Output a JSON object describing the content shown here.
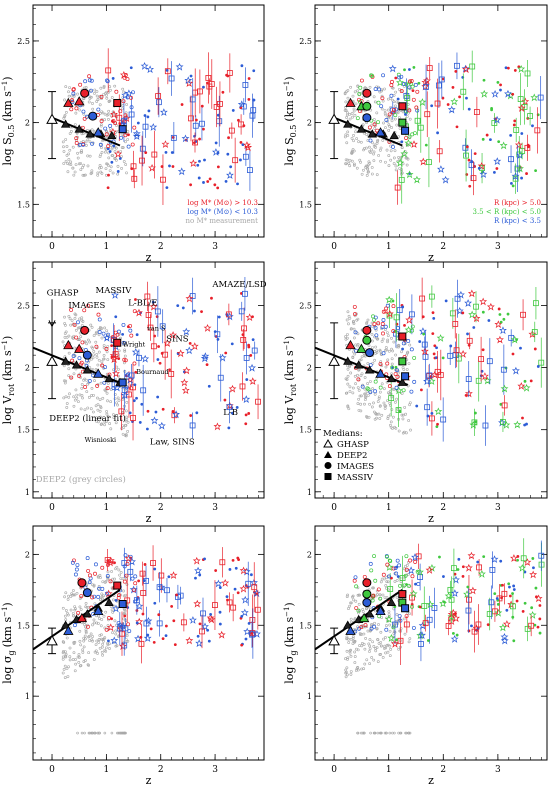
{
  "colors": {
    "red": "#e8202a",
    "blue": "#2c5cd6",
    "green": "#3fc83f",
    "grey": "#a8a8a8",
    "black": "#000000",
    "purple": "#8a3aa8"
  },
  "chart_data": [
    {
      "id": "p1",
      "type": "scatter",
      "ylabel_main": "log S",
      "ylabel_sub": "0.5",
      "ylabel_unit": "(km s",
      "ylabel_sup": "−1",
      "ylabel_end": ")",
      "xlabel": "z",
      "xlim": [
        -0.35,
        3.9
      ],
      "ylim": [
        1.3,
        2.72
      ],
      "xticks": [
        "0",
        "1",
        "2",
        "3"
      ],
      "yticks": [
        "1.5",
        "2",
        "2.5"
      ],
      "legend": [
        {
          "text": "log M* (M⊙) > 10.3",
          "color": "red"
        },
        {
          "text": "log M* (M⊙) < 10.3",
          "color": "blue"
        },
        {
          "text": "no M* measurement",
          "color": "grey"
        }
      ],
      "fit": {
        "x": [
          0,
          1.25
        ],
        "y": [
          2.03,
          1.86
        ]
      },
      "ghasp": {
        "x": 0.0,
        "y": 2.02,
        "ylow": 1.78,
        "yhigh": 2.19
      },
      "medians_deep2": {
        "x": [
          0.25,
          0.5,
          0.7,
          0.9,
          1.1
        ],
        "y": [
          1.99,
          1.96,
          1.93,
          1.93,
          1.92
        ]
      },
      "medians_images": [
        {
          "x": 0.6,
          "y": 2.18,
          "color": "red"
        },
        {
          "x": 0.75,
          "y": 2.04,
          "color": "blue"
        }
      ],
      "medians_massiv": [
        {
          "x": 1.2,
          "y": 2.12,
          "color": "red"
        },
        {
          "x": 1.3,
          "y": 1.96,
          "color": "blue"
        }
      ],
      "triangle_colored": [
        {
          "x": 0.3,
          "y": 2.12,
          "color": "red"
        },
        {
          "x": 0.5,
          "y": 2.13,
          "color": "red"
        },
        {
          "x": 0.85,
          "y": 1.94,
          "color": "blue"
        }
      ]
    },
    {
      "id": "p2",
      "type": "scatter",
      "ylabel_main": "log S",
      "ylabel_sub": "0.5",
      "ylabel_unit": "(km s",
      "ylabel_sup": "−1",
      "ylabel_end": ")",
      "xlabel": "z",
      "xlim": [
        -0.35,
        3.9
      ],
      "ylim": [
        1.3,
        2.72
      ],
      "xticks": [
        "0",
        "1",
        "2",
        "3"
      ],
      "yticks": [
        "1.5",
        "2",
        "2.5"
      ],
      "legend": [
        {
          "text": "R (kpc) > 5.0",
          "color": "red"
        },
        {
          "text": "3.5 < R (kpc) < 5.0",
          "color": "green"
        },
        {
          "text": "R (kpc) < 3.5",
          "color": "blue"
        }
      ],
      "fit": {
        "x": [
          0,
          1.25
        ],
        "y": [
          2.03,
          1.86
        ]
      },
      "ghasp": {
        "x": 0.0,
        "y": 2.02,
        "ylow": 1.78,
        "yhigh": 2.19
      },
      "medians_deep2": {
        "x": [
          0.25,
          0.5,
          0.7,
          0.9,
          1.1
        ],
        "y": [
          1.99,
          1.96,
          1.93,
          1.93,
          1.92
        ]
      },
      "medians_images": [
        {
          "x": 0.6,
          "y": 2.18,
          "color": "red"
        },
        {
          "x": 0.6,
          "y": 2.1,
          "color": "green"
        },
        {
          "x": 0.6,
          "y": 2.03,
          "color": "blue"
        }
      ],
      "medians_massiv": [
        {
          "x": 1.25,
          "y": 2.1,
          "color": "red"
        },
        {
          "x": 1.25,
          "y": 2.0,
          "color": "green"
        },
        {
          "x": 1.3,
          "y": 1.95,
          "color": "blue"
        }
      ],
      "triangle_colored": [
        {
          "x": 0.3,
          "y": 2.12,
          "color": "red"
        },
        {
          "x": 0.5,
          "y": 2.1,
          "color": "green"
        },
        {
          "x": 0.85,
          "y": 1.94,
          "color": "blue"
        }
      ]
    },
    {
      "id": "p3",
      "type": "scatter",
      "ylabel_main": "log V",
      "ylabel_sub": "rot",
      "ylabel_unit": "(km s",
      "ylabel_sup": "−1",
      "ylabel_end": ")",
      "xlabel": "z",
      "xlim": [
        -0.35,
        3.9
      ],
      "ylim": [
        0.95,
        2.85
      ],
      "xticks": [
        "0",
        "1",
        "2",
        "3"
      ],
      "yticks": [
        "1",
        "1.5",
        "2",
        "2.5"
      ],
      "annotations": [
        {
          "text": "GHASP",
          "x": -0.1,
          "y": 2.58
        },
        {
          "text": "IMAGES",
          "x": 0.3,
          "y": 2.48
        },
        {
          "text": "MASSIV",
          "x": 0.8,
          "y": 2.6
        },
        {
          "text": "L-BL/E",
          "x": 1.4,
          "y": 2.5
        },
        {
          "text": "AMAZE/LSD",
          "x": 2.95,
          "y": 2.65
        },
        {
          "text": "van S",
          "x": 1.75,
          "y": 2.3
        },
        {
          "text": "Wright",
          "x": 1.3,
          "y": 2.17
        },
        {
          "text": "SINS",
          "x": 2.1,
          "y": 2.21
        },
        {
          "text": "Bournaud",
          "x": 1.55,
          "y": 1.95
        },
        {
          "text": "DEEP2 (linear fit)",
          "x": -0.05,
          "y": 1.57
        },
        {
          "text": "Wisnioski",
          "x": 0.6,
          "y": 1.4
        },
        {
          "text": "Law, SINS",
          "x": 1.8,
          "y": 1.38
        },
        {
          "text": "L-B",
          "x": 3.15,
          "y": 1.62
        },
        {
          "text": "DEEP2 (grey circles)",
          "x": -0.3,
          "y": 1.08
        }
      ],
      "fit": {
        "x": [
          -0.35,
          1.35
        ],
        "y": [
          2.16,
          1.86
        ]
      },
      "ghasp": {
        "x": 0.0,
        "y": 2.05,
        "ylow": 1.75,
        "yhigh": 2.36
      },
      "medians_deep2": {
        "x": [
          0.25,
          0.45,
          0.65,
          0.85,
          1.05,
          1.25
        ],
        "y": [
          2.05,
          2.02,
          1.98,
          1.95,
          1.91,
          1.88
        ]
      },
      "medians_images": [
        {
          "x": 0.6,
          "y": 2.3,
          "color": "red"
        },
        {
          "x": 0.65,
          "y": 2.1,
          "color": "blue"
        }
      ],
      "medians_massiv": [
        {
          "x": 1.2,
          "y": 2.2,
          "color": "red"
        },
        {
          "x": 1.3,
          "y": 1.88,
          "color": "blue"
        }
      ],
      "triangle_colored": [
        {
          "x": 0.3,
          "y": 2.18,
          "color": "red"
        },
        {
          "x": 0.5,
          "y": 2.15,
          "color": "red"
        },
        {
          "x": 0.85,
          "y": 1.95,
          "color": "blue"
        }
      ]
    },
    {
      "id": "p4",
      "type": "scatter",
      "ylabel_main": "log V",
      "ylabel_sub": "rot",
      "ylabel_unit": "(km s",
      "ylabel_sup": "−1",
      "ylabel_end": ")",
      "xlabel": "z",
      "xlim": [
        -0.35,
        3.9
      ],
      "ylim": [
        0.95,
        2.85
      ],
      "xticks": [
        "0",
        "1",
        "2",
        "3"
      ],
      "yticks": [
        "1",
        "1.5",
        "2",
        "2.5"
      ],
      "legend_title": "Medians:",
      "legend_markers": [
        {
          "text": "GHASP",
          "marker": "open-triangle"
        },
        {
          "text": "DEEP2",
          "marker": "filled-triangle"
        },
        {
          "text": "IMAGES",
          "marker": "filled-circle"
        },
        {
          "text": "MASSIV",
          "marker": "filled-square"
        }
      ],
      "fit": {
        "x": [
          -0.35,
          1.35
        ],
        "y": [
          2.16,
          1.86
        ]
      },
      "ghasp": {
        "x": 0.0,
        "y": 2.05,
        "ylow": 1.75,
        "yhigh": 2.36
      },
      "medians_deep2": {
        "x": [
          0.25,
          0.45,
          0.65,
          0.85,
          1.05,
          1.25
        ],
        "y": [
          2.05,
          2.02,
          1.98,
          1.95,
          1.91,
          1.88
        ]
      },
      "medians_images": [
        {
          "x": 0.6,
          "y": 2.3,
          "color": "red"
        },
        {
          "x": 0.6,
          "y": 2.22,
          "color": "green"
        },
        {
          "x": 0.65,
          "y": 2.12,
          "color": "blue"
        }
      ],
      "medians_massiv": [
        {
          "x": 1.25,
          "y": 2.25,
          "color": "red"
        },
        {
          "x": 1.25,
          "y": 2.05,
          "color": "green"
        },
        {
          "x": 1.3,
          "y": 1.93,
          "color": "blue"
        }
      ],
      "triangle_colored": [
        {
          "x": 0.3,
          "y": 2.18,
          "color": "red"
        },
        {
          "x": 0.5,
          "y": 2.15,
          "color": "green"
        },
        {
          "x": 0.85,
          "y": 1.95,
          "color": "blue"
        }
      ]
    },
    {
      "id": "p5",
      "type": "scatter",
      "ylabel_main": "log σ",
      "ylabel_sub": "g",
      "ylabel_unit": "(km s",
      "ylabel_sup": "−1",
      "ylabel_end": ")",
      "xlabel": "z",
      "xlim": [
        -0.35,
        3.9
      ],
      "ylim": [
        0.55,
        2.2
      ],
      "xticks": [
        "0",
        "1",
        "2",
        "3"
      ],
      "yticks": [
        "1",
        "1.5",
        "2"
      ],
      "fit": {
        "x": [
          -0.35,
          1.25
        ],
        "y": [
          1.33,
          1.75
        ]
      },
      "ghasp": {
        "x": 0.0,
        "y": 1.39,
        "ylow": 1.3,
        "yhigh": 1.48
      },
      "medians_deep2": {
        "x": [
          0.25,
          0.45,
          0.65,
          0.85,
          1.05
        ],
        "y": [
          1.5,
          1.54,
          1.58,
          1.62,
          1.66
        ]
      },
      "medians_images": [
        {
          "x": 0.55,
          "y": 1.8,
          "color": "red"
        },
        {
          "x": 0.65,
          "y": 1.73,
          "color": "blue"
        }
      ],
      "medians_massiv": [
        {
          "x": 1.2,
          "y": 1.78,
          "color": "red"
        },
        {
          "x": 1.3,
          "y": 1.65,
          "color": "blue"
        }
      ],
      "triangle_colored": [
        {
          "x": 0.3,
          "y": 1.46,
          "color": "blue"
        },
        {
          "x": 0.55,
          "y": 1.55,
          "color": "red"
        },
        {
          "x": 0.85,
          "y": 1.6,
          "color": "blue"
        }
      ]
    },
    {
      "id": "p6",
      "type": "scatter",
      "ylabel_main": "log σ",
      "ylabel_sub": "g",
      "ylabel_unit": "(km s",
      "ylabel_sup": "−1",
      "ylabel_end": ")",
      "xlabel": "z",
      "xlim": [
        -0.35,
        3.9
      ],
      "ylim": [
        0.55,
        2.2
      ],
      "xticks": [
        "0",
        "1",
        "2",
        "3"
      ],
      "yticks": [
        "1",
        "1.5",
        "2"
      ],
      "fit": {
        "x": [
          -0.35,
          1.25
        ],
        "y": [
          1.33,
          1.75
        ]
      },
      "ghasp": {
        "x": 0.0,
        "y": 1.39,
        "ylow": 1.3,
        "yhigh": 1.48
      },
      "medians_deep2": {
        "x": [
          0.25,
          0.45,
          0.65,
          0.85,
          1.05
        ],
        "y": [
          1.5,
          1.54,
          1.58,
          1.62,
          1.66
        ]
      },
      "medians_images": [
        {
          "x": 0.6,
          "y": 1.8,
          "color": "red"
        },
        {
          "x": 0.6,
          "y": 1.72,
          "color": "green"
        },
        {
          "x": 0.6,
          "y": 1.66,
          "color": "blue"
        }
      ],
      "medians_massiv": [
        {
          "x": 1.25,
          "y": 1.72,
          "color": "red"
        },
        {
          "x": 1.25,
          "y": 1.66,
          "color": "green"
        },
        {
          "x": 1.3,
          "y": 1.62,
          "color": "blue"
        }
      ],
      "triangle_colored": [
        {
          "x": 0.3,
          "y": 1.46,
          "color": "blue"
        },
        {
          "x": 0.55,
          "y": 1.55,
          "color": "green"
        },
        {
          "x": 0.85,
          "y": 1.6,
          "color": "blue"
        }
      ]
    }
  ]
}
